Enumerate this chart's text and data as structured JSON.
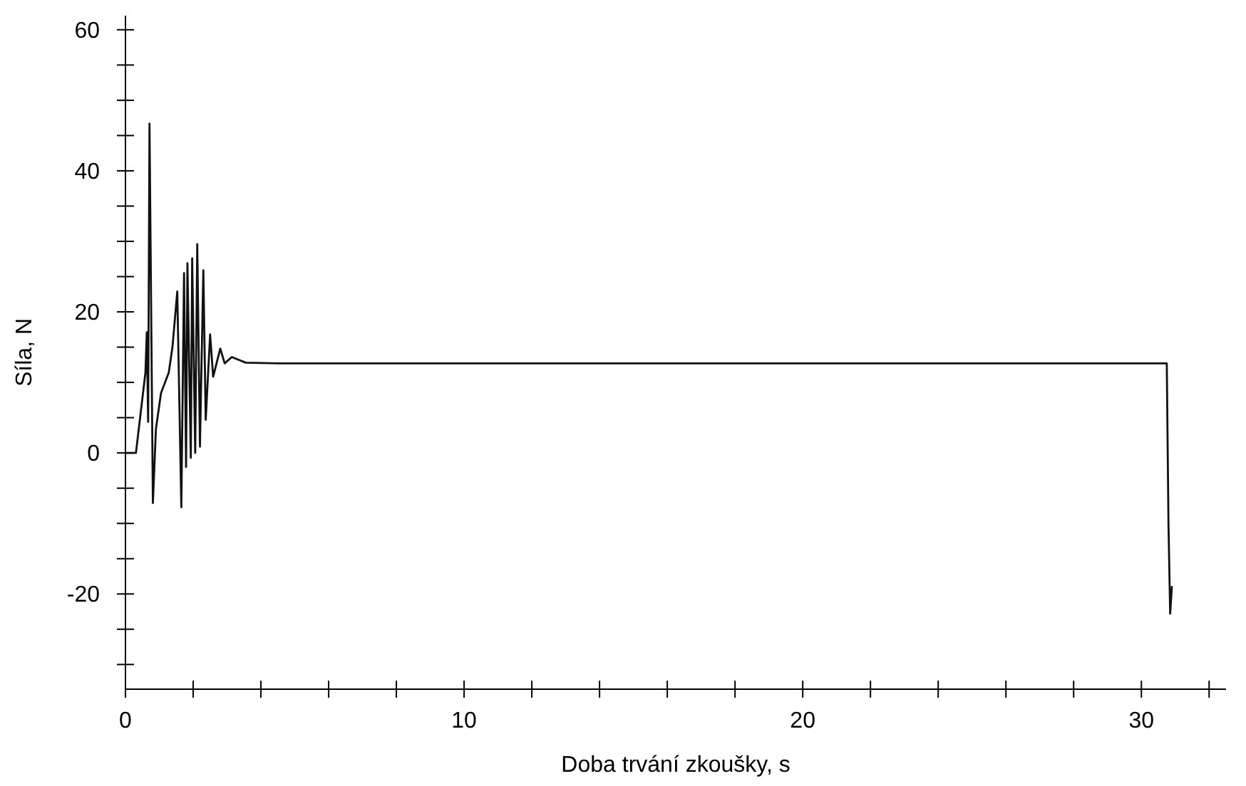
{
  "chart_data": {
    "type": "line",
    "xlabel": "Doba trvání zkoušky, s",
    "ylabel": "Síla, N",
    "xlim": [
      0,
      32.5
    ],
    "ylim": [
      -33.5,
      62
    ],
    "xticks": [
      0,
      {
        "value": 2,
        "label": null
      },
      {
        "value": 4,
        "label": null
      },
      {
        "value": 6,
        "label": null
      },
      {
        "value": 8,
        "label": null
      },
      10,
      {
        "value": 12,
        "label": null
      },
      {
        "value": 14,
        "label": null
      },
      {
        "value": 16,
        "label": null
      },
      {
        "value": 18,
        "label": null
      },
      20,
      {
        "value": 22,
        "label": null
      },
      {
        "value": 24,
        "label": null
      },
      {
        "value": 26,
        "label": null
      },
      {
        "value": 28,
        "label": null
      },
      30,
      {
        "value": 32,
        "label": null
      }
    ],
    "yticks": [
      {
        "value": -30,
        "label": null
      },
      {
        "value": -25,
        "label": null
      },
      -20,
      {
        "value": -15,
        "label": null
      },
      {
        "value": -10,
        "label": null
      },
      {
        "value": -5,
        "label": null
      },
      0,
      {
        "value": 5,
        "label": null
      },
      {
        "value": 10,
        "label": null
      },
      {
        "value": 15,
        "label": null
      },
      20,
      {
        "value": 25,
        "label": null
      },
      {
        "value": 30,
        "label": null
      },
      {
        "value": 35,
        "label": null
      },
      40,
      {
        "value": 45,
        "label": null
      },
      {
        "value": 50,
        "label": null
      },
      {
        "value": 55,
        "label": null
      },
      60
    ],
    "grid": false,
    "marker": "none",
    "line_style": "solid",
    "series": [
      {
        "color": "#111111",
        "x": [
          0,
          0.31,
          0.59,
          0.63,
          0.67,
          0.71,
          0.81,
          0.9,
          1.05,
          1.28,
          1.39,
          1.53,
          1.65,
          1.73,
          1.79,
          1.83,
          1.93,
          1.97,
          2.06,
          2.12,
          2.2,
          2.3,
          2.37,
          2.5,
          2.59,
          2.8,
          2.93,
          3.14,
          3.55,
          4.5,
          10,
          20,
          30.75,
          30.8,
          30.85,
          30.9
        ],
        "values": [
          0,
          0,
          11.4,
          17.1,
          4.4,
          46.7,
          -7.1,
          3.4,
          8.5,
          11.4,
          15.1,
          22.9,
          -7.7,
          25.5,
          -2,
          26.9,
          -0.7,
          27.6,
          0,
          29.6,
          0.9,
          25.9,
          4.7,
          16.8,
          10.8,
          14.8,
          12.7,
          13.6,
          12.8,
          12.7,
          12.7,
          12.7,
          12.7,
          -10,
          -22.8,
          -19
        ]
      }
    ]
  }
}
